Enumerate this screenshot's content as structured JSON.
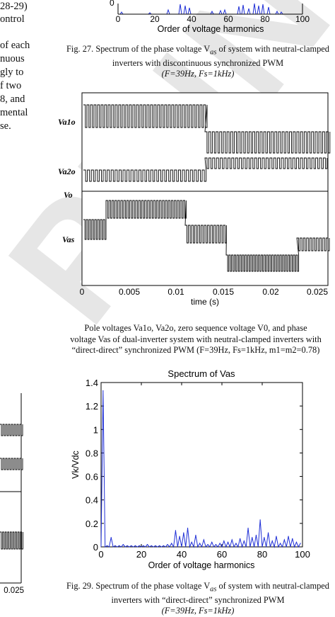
{
  "watermark": "PRINT",
  "left_text_fragments": [
    "28-29)",
    "ontrol",
    "of each",
    "nuous",
    "gly to",
    "f two",
    "8, and",
    "mental",
    "se."
  ],
  "top_axis": {
    "ticks": [
      "0",
      "20",
      "40",
      "60",
      "80",
      "100"
    ],
    "xlabel": "Order of voltage harmonics"
  },
  "fig27": {
    "label": "Fig. 27.",
    "text1": "Spectrum of the phase voltage V",
    "sub1": "as",
    "text2": " of system with neutral-clamped inverters with discontinuous synchronized PWM",
    "params": "(F=39Hz, Fs=1kHz)"
  },
  "fig28_plot": {
    "row_labels": [
      "Va1o",
      "Va2o",
      "Vo",
      "Vas"
    ],
    "x_ticks": [
      "0",
      "0.005",
      "0.01",
      "0.015",
      "0.02",
      "0.025"
    ],
    "xlabel": "time (s)"
  },
  "fig28": {
    "label": "Fig. 28.",
    "line1": "Pole voltages Va1o, Va2o, zero sequence voltage V0, and phase",
    "line2": "voltage Vas of dual-inverter system with neutral-clamped inverters with",
    "line3": "“direct-direct” synchronized PWM (F=39Hz, Fs=1kHz, m1=m2=0.78)"
  },
  "chart_data": {
    "type": "line",
    "title": "Spectrum of Vas",
    "xlabel": "Order of voltage harmonics",
    "ylabel": "Vk/Vdc",
    "xlim": [
      0,
      100
    ],
    "ylim": [
      0,
      1.4
    ],
    "x_ticks": [
      "0",
      "20",
      "40",
      "60",
      "80",
      "100"
    ],
    "y_ticks": [
      "0",
      "0.2",
      "0.4",
      "0.6",
      "0.8",
      "1",
      "1.2",
      "1.4"
    ],
    "color": "#1f2fd6",
    "series": [
      {
        "x": [
          1,
          3,
          5,
          7,
          9,
          11,
          13,
          15,
          17,
          19,
          21,
          23,
          25,
          27,
          29,
          31,
          33,
          35,
          37,
          39,
          41,
          43,
          45,
          47,
          49,
          51,
          53,
          55,
          57,
          59,
          61,
          63,
          65,
          67,
          69,
          71,
          73,
          75,
          77,
          79,
          81,
          83,
          85,
          87,
          89,
          91,
          93,
          95,
          97,
          99
        ],
        "y": [
          1.33,
          0.01,
          0.08,
          0.01,
          0.01,
          0.02,
          0.01,
          0.01,
          0.01,
          0.01,
          0.01,
          0.02,
          0.01,
          0.01,
          0.01,
          0.01,
          0.02,
          0.03,
          0.14,
          0.09,
          0.12,
          0.16,
          0.04,
          0.1,
          0.03,
          0.06,
          0.02,
          0.04,
          0.02,
          0.03,
          0.05,
          0.04,
          0.06,
          0.03,
          0.07,
          0.05,
          0.16,
          0.08,
          0.1,
          0.23,
          0.08,
          0.12,
          0.05,
          0.09,
          0.03,
          0.06,
          0.09,
          0.07,
          0.04,
          0.03
        ]
      }
    ]
  },
  "fig29": {
    "label": "Fig. 29.",
    "text1": "Spectrum of the phase voltage V",
    "sub1": "as",
    "text2": " of system with neutral-clamped inverters with “direct-direct” synchronized PWM",
    "params": "(F=39Hz, Fs=1kHz)"
  },
  "left_partial_plot": {
    "x_tick": "0.025"
  }
}
